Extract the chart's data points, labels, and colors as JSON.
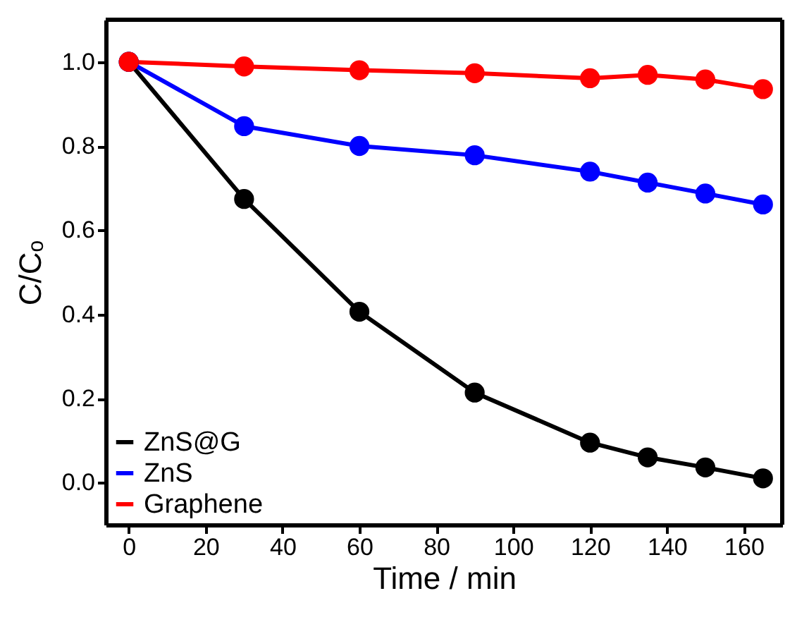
{
  "chart_data": {
    "type": "line",
    "xlabel": "Time / min",
    "ylabel": "C/Cₒ",
    "x": [
      0,
      30,
      60,
      90,
      120,
      135,
      150,
      165
    ],
    "series": [
      {
        "name": "ZnS@G",
        "color": "#000000",
        "values": [
          1.0,
          0.674,
          0.406,
          0.214,
          0.095,
          0.06,
          0.036,
          0.01
        ]
      },
      {
        "name": "ZnS",
        "color": "#0000ff",
        "values": [
          1.0,
          0.847,
          0.8,
          0.778,
          0.739,
          0.713,
          0.687,
          0.661
        ]
      },
      {
        "name": "Graphene",
        "color": "#ff0000",
        "values": [
          1.0,
          0.989,
          0.98,
          0.973,
          0.961,
          0.969,
          0.958,
          0.935
        ]
      }
    ],
    "xlim": [
      -6,
      170
    ],
    "xticks": [
      0,
      20,
      40,
      60,
      80,
      100,
      120,
      140,
      160
    ],
    "ylim": [
      -0.1,
      1.1
    ],
    "yticks": [
      {
        "value": 0,
        "label": "0.0"
      },
      {
        "value": 0.2,
        "label": "0.2"
      },
      {
        "value": 0.4,
        "label": "0.4"
      },
      {
        "value": 0.6,
        "label": "0.6"
      },
      {
        "value": 0.8,
        "label": "0.8"
      },
      {
        "value": 1,
        "label": "1.0"
      }
    ],
    "legend": "bottom left",
    "marker": "circle",
    "line_style": "solid",
    "grid": false
  }
}
